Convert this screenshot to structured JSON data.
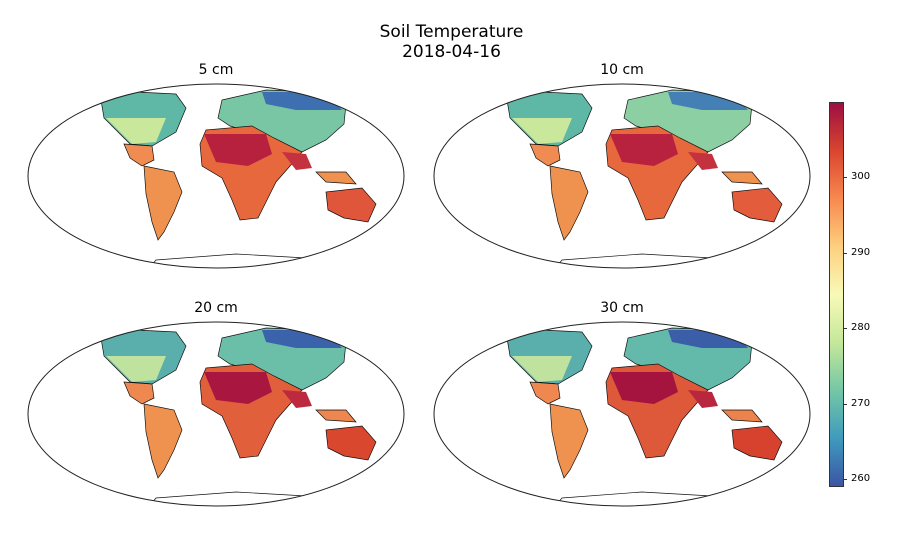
{
  "figure": {
    "title": "Soil Temperature",
    "subtitle": "2018-04-16"
  },
  "panels": [
    {
      "label": "5 cm"
    },
    {
      "label": "10 cm"
    },
    {
      "label": "20 cm"
    },
    {
      "label": "30 cm"
    }
  ],
  "colorbar": {
    "min": 259,
    "max": 310,
    "ticks": [
      "260",
      "270",
      "280",
      "290",
      "300"
    ],
    "colormap": [
      "#3b55a5",
      "#3f9bbd",
      "#74c7a5",
      "#c5e89a",
      "#f8fab8",
      "#fdd07e",
      "#f7894f",
      "#d9452f",
      "#9c0f42"
    ]
  }
}
